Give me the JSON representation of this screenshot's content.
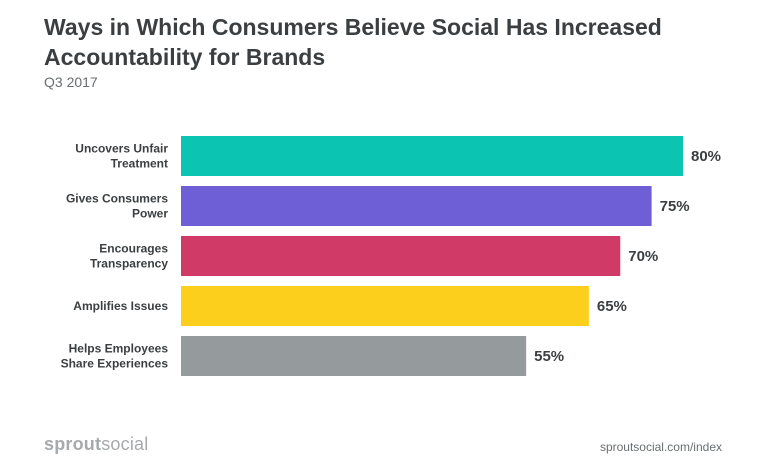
{
  "header": {
    "title": "Ways in Which Consumers Believe Social Has Increased Accountability for Brands",
    "subtitle": "Q3 2017"
  },
  "footer": {
    "logo_bold": "sprout",
    "logo_light": "social",
    "source": "sproutsocial.com/index"
  },
  "chart_data": {
    "type": "bar",
    "orientation": "horizontal",
    "title": "Ways in Which Consumers Believe Social Has Increased Accountability for Brands",
    "subtitle": "Q3 2017",
    "categories": [
      [
        "Uncovers Unfair",
        "Treatment"
      ],
      [
        "Gives Consumers",
        "Power"
      ],
      [
        "Encourages",
        "Transparency"
      ],
      [
        "Amplifies Issues"
      ],
      [
        "Helps Employees",
        "Share Experiences"
      ]
    ],
    "values": [
      80,
      75,
      70,
      65,
      55
    ],
    "value_labels": [
      "80%",
      "75%",
      "70%",
      "65%",
      "55%"
    ],
    "colors": [
      "#0bc4b1",
      "#6f5fd6",
      "#cf3a66",
      "#fccf1c",
      "#959b9d"
    ],
    "xlim": [
      0,
      100
    ],
    "xlabel": "",
    "ylabel": "",
    "grid": false,
    "legend": "none"
  }
}
